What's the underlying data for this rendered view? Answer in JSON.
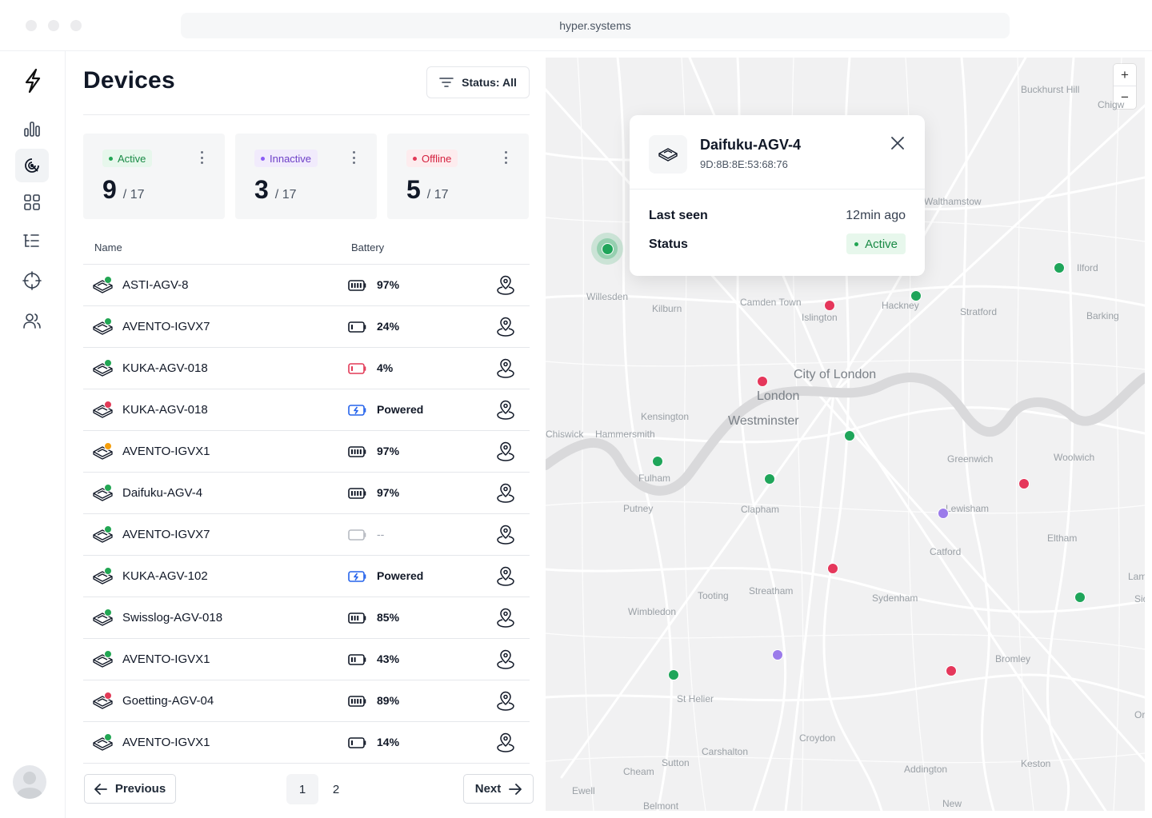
{
  "browser": {
    "url": "hyper.systems"
  },
  "sidebar": {
    "items": [
      {
        "icon": "analytics-icon"
      },
      {
        "icon": "radar-icon",
        "active": true
      },
      {
        "icon": "grid-icon"
      },
      {
        "icon": "list-tree-icon"
      },
      {
        "icon": "crosshair-icon"
      },
      {
        "icon": "users-icon"
      }
    ]
  },
  "page": {
    "title": "Devices",
    "filter_label": "Status: All"
  },
  "stats": [
    {
      "badge": "Active",
      "value": "9",
      "total": "/ 17",
      "color": "#22a653"
    },
    {
      "badge": "Innactive",
      "value": "3",
      "total": "/ 17",
      "color": "#8b5cf6"
    },
    {
      "badge": "Offline",
      "value": "5",
      "total": "/ 17",
      "color": "#e23a57"
    }
  ],
  "table": {
    "columns": [
      "Name",
      "Battery"
    ],
    "rows": [
      {
        "name": "ASTI-AGV-8",
        "status": "green",
        "battery": "97%",
        "battery_level": 0.97,
        "battery_kind": "normal"
      },
      {
        "name": "AVENTO-IGVX7",
        "status": "green",
        "battery": "24%",
        "battery_level": 0.24,
        "battery_kind": "normal"
      },
      {
        "name": "KUKA-AGV-018",
        "status": "green",
        "battery": "4%",
        "battery_level": 0.04,
        "battery_kind": "low"
      },
      {
        "name": "KUKA-AGV-018",
        "status": "red",
        "battery": "Powered",
        "battery_level": 1,
        "battery_kind": "charging"
      },
      {
        "name": "AVENTO-IGVX1",
        "status": "orange",
        "battery": "97%",
        "battery_level": 0.97,
        "battery_kind": "normal"
      },
      {
        "name": "Daifuku-AGV-4",
        "status": "green",
        "battery": "97%",
        "battery_level": 0.97,
        "battery_kind": "normal"
      },
      {
        "name": "AVENTO-IGVX7",
        "status": "green",
        "battery": "--",
        "battery_level": 0,
        "battery_kind": "unknown"
      },
      {
        "name": "KUKA-AGV-102",
        "status": "green",
        "battery": "Powered",
        "battery_level": 1,
        "battery_kind": "charging"
      },
      {
        "name": "Swisslog-AGV-018",
        "status": "green",
        "battery": "85%",
        "battery_level": 0.85,
        "battery_kind": "normal"
      },
      {
        "name": "AVENTO-IGVX1",
        "status": "green",
        "battery": "43%",
        "battery_level": 0.43,
        "battery_kind": "normal"
      },
      {
        "name": "Goetting-AGV-04",
        "status": "red",
        "battery": "89%",
        "battery_level": 0.89,
        "battery_kind": "normal"
      },
      {
        "name": "AVENTO-IGVX1",
        "status": "green",
        "battery": "14%",
        "battery_level": 0.14,
        "battery_kind": "normal"
      }
    ]
  },
  "pagination": {
    "previous": "Previous",
    "next": "Next",
    "pages": [
      "1",
      "2"
    ],
    "current": "1"
  },
  "colors": {
    "green": "#22a653",
    "red": "#e23a57",
    "orange": "#f59e0b",
    "purple": "#8b5cf6"
  },
  "map": {
    "zoom_in": "+",
    "zoom_out": "−",
    "places": [
      "Buckhurst Hill",
      "Chigw",
      "Walthamstow",
      "Ilford",
      "Willesden",
      "Kilburn",
      "Camden Town",
      "Islington",
      "Hackney",
      "Stratford",
      "Barking",
      "City of London",
      "London",
      "Westminster",
      "Kensington",
      "Chiswick",
      "Hammersmith",
      "Fulham",
      "Greenwich",
      "Woolwich",
      "Putney",
      "Clapham",
      "Lewisham",
      "Eltham",
      "Catford",
      "Streatham",
      "Tooting",
      "Sydenham",
      "Lamor",
      "Sidcu",
      "Wimbledon",
      "Bromley",
      "St Helier",
      "Orpin",
      "Croydon",
      "Carshalton",
      "Sutton",
      "Cheam",
      "Addington",
      "Keston",
      "Ewell",
      "Belmont",
      "New"
    ],
    "popup": {
      "title": "Daifuku-AGV-4",
      "mac": "9D:8B:8E:53:68:76",
      "last_seen_label": "Last seen",
      "last_seen_value": "12min ago",
      "status_label": "Status",
      "status_value": "Active"
    }
  }
}
